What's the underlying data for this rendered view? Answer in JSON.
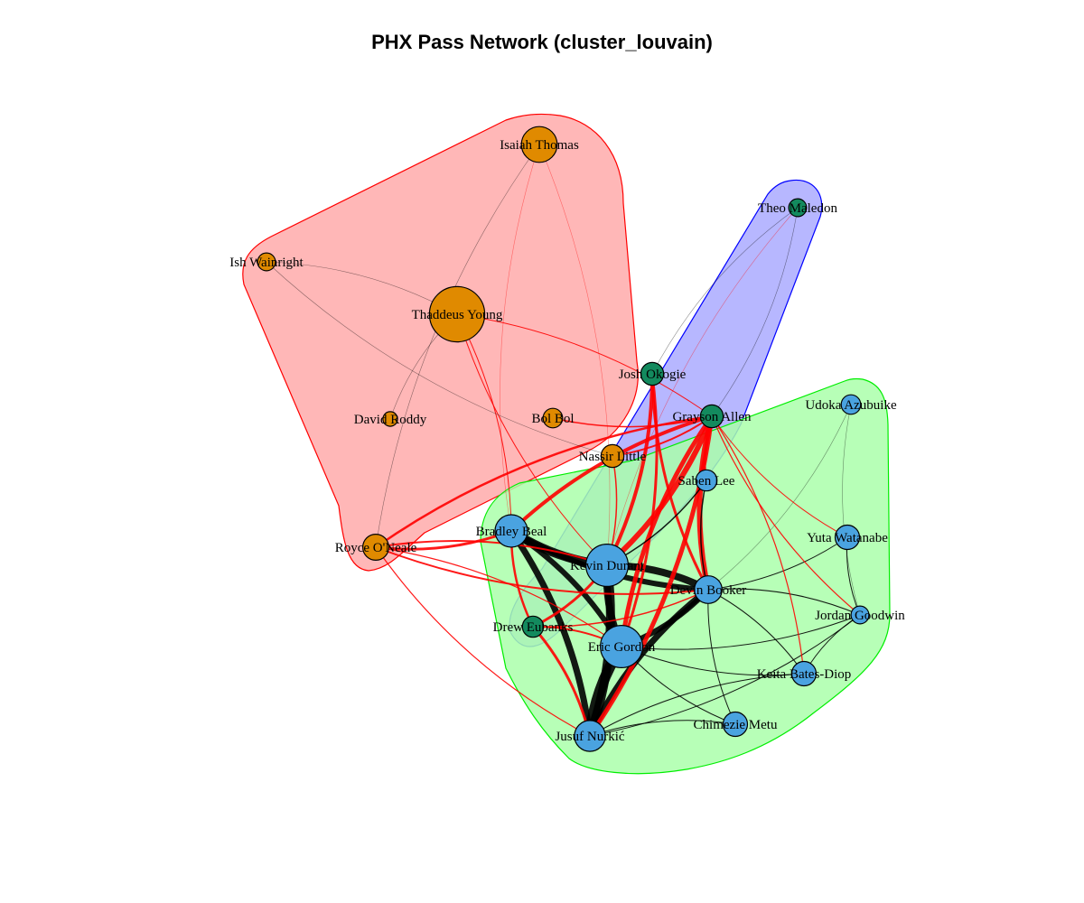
{
  "title": "PHX Pass Network (cluster_louvain)",
  "colors": {
    "cluster_red_fill": "#FFAAAA",
    "cluster_red_stroke": "#FF0000",
    "cluster_blue_fill": "#AAAAFF",
    "cluster_blue_stroke": "#0000FF",
    "cluster_green_fill": "#AAFFAA",
    "cluster_green_stroke": "#00EE00",
    "node_orange": "#E08A00",
    "node_green": "#138A5E",
    "node_blue": "#4AA3E0",
    "edge_between": "#FF0000",
    "edge_within": "#000000"
  },
  "clusters": [
    {
      "id": "red",
      "members": [
        "Isaiah Thomas",
        "Ish Wainright",
        "Thaddeus Young",
        "David Roddy",
        "Bol Bol",
        "Nassir Little",
        "Royce O'Neale"
      ]
    },
    {
      "id": "blue",
      "members": [
        "Theo Maledon",
        "Josh Okogie",
        "Grayson Allen",
        "Drew Eubanks"
      ]
    },
    {
      "id": "green",
      "members": [
        "Udoka Azubuike",
        "Saben Lee",
        "Bradley Beal",
        "Kevin Durant",
        "Devin Booker",
        "Yuta Watanabe",
        "Jordan Goodwin",
        "Eric Gordon",
        "Keita Bates-Diop",
        "Chimezie Metu",
        "Jusuf Nurkić"
      ]
    }
  ],
  "nodes": [
    {
      "id": "Isaiah Thomas",
      "label": "Isaiah Thomas",
      "cluster": "red",
      "size": 2.2
    },
    {
      "id": "Ish Wainright",
      "label": "Ish Wainright",
      "cluster": "red",
      "size": 1.1
    },
    {
      "id": "Thaddeus Young",
      "label": "Thaddeus Young",
      "cluster": "red",
      "size": 3.4
    },
    {
      "id": "David Roddy",
      "label": "David Roddy",
      "cluster": "red",
      "size": 0.9
    },
    {
      "id": "Bol Bol",
      "label": "Bol Bol",
      "cluster": "red",
      "size": 1.2
    },
    {
      "id": "Nassir Little",
      "label": "Nassir Little",
      "cluster": "red",
      "size": 1.4
    },
    {
      "id": "Royce O'Neale",
      "label": "Royce O'Neale",
      "cluster": "red",
      "size": 1.6
    },
    {
      "id": "Theo Maledon",
      "label": "Theo Maledon",
      "cluster": "blue",
      "size": 1.1
    },
    {
      "id": "Josh Okogie",
      "label": "Josh Okogie",
      "cluster": "blue",
      "size": 1.4
    },
    {
      "id": "Grayson Allen",
      "label": "Grayson Allen",
      "cluster": "blue",
      "size": 1.4
    },
    {
      "id": "Drew Eubanks",
      "label": "Drew Eubanks",
      "cluster": "blue",
      "size": 1.3
    },
    {
      "id": "Udoka Azubuike",
      "label": "Udoka Azubuike",
      "cluster": "green",
      "size": 1.2
    },
    {
      "id": "Saben Lee",
      "label": "Saben Lee",
      "cluster": "green",
      "size": 1.3
    },
    {
      "id": "Bradley Beal",
      "label": "Bradley Beal",
      "cluster": "green",
      "size": 2.0
    },
    {
      "id": "Kevin Durant",
      "label": "Kevin Durant",
      "cluster": "green",
      "size": 2.6
    },
    {
      "id": "Devin Booker",
      "label": "Devin Booker",
      "cluster": "green",
      "size": 1.7
    },
    {
      "id": "Yuta Watanabe",
      "label": "Yuta Watanabe",
      "cluster": "green",
      "size": 1.5
    },
    {
      "id": "Jordan Goodwin",
      "label": "Jordan Goodwin",
      "cluster": "green",
      "size": 1.1
    },
    {
      "id": "Eric Gordon",
      "label": "Eric Gordon",
      "cluster": "green",
      "size": 2.6
    },
    {
      "id": "Keita Bates-Diop",
      "label": "Keita Bates-Diop",
      "cluster": "green",
      "size": 1.5
    },
    {
      "id": "Chimezie Metu",
      "label": "Chimezie Metu",
      "cluster": "green",
      "size": 1.5
    },
    {
      "id": "Jusuf Nurkić",
      "label": "Jusuf Nurkić",
      "cluster": "green",
      "size": 1.9
    }
  ],
  "edges": [
    {
      "source": "Kevin Durant",
      "target": "Jusuf Nurkić",
      "weight": 10
    },
    {
      "source": "Eric Gordon",
      "target": "Jusuf Nurkić",
      "weight": 12
    },
    {
      "source": "Bradley Beal",
      "target": "Jusuf Nurkić",
      "weight": 7
    },
    {
      "source": "Bradley Beal",
      "target": "Kevin Durant",
      "weight": 10
    },
    {
      "source": "Bradley Beal",
      "target": "Eric Gordon",
      "weight": 6
    },
    {
      "source": "Bradley Beal",
      "target": "Devin Booker",
      "weight": 6
    },
    {
      "source": "Kevin Durant",
      "target": "Devin Booker",
      "weight": 8
    },
    {
      "source": "Kevin Durant",
      "target": "Eric Gordon",
      "weight": 8
    },
    {
      "source": "Devin Booker",
      "target": "Eric Gordon",
      "weight": 6
    },
    {
      "source": "Devin Booker",
      "target": "Jusuf Nurkić",
      "weight": 7
    },
    {
      "source": "Drew Eubanks",
      "target": "Jusuf Nurkić",
      "weight": 3
    },
    {
      "source": "Drew Eubanks",
      "target": "Kevin Durant",
      "weight": 3
    },
    {
      "source": "Drew Eubanks",
      "target": "Bradley Beal",
      "weight": 2.5
    },
    {
      "source": "Grayson Allen",
      "target": "Devin Booker",
      "weight": 6
    },
    {
      "source": "Grayson Allen",
      "target": "Kevin Durant",
      "weight": 6
    },
    {
      "source": "Grayson Allen",
      "target": "Eric Gordon",
      "weight": 5
    },
    {
      "source": "Grayson Allen",
      "target": "Jusuf Nurkić",
      "weight": 5
    },
    {
      "source": "Grayson Allen",
      "target": "Bradley Beal",
      "weight": 4
    },
    {
      "source": "Josh Okogie",
      "target": "Kevin Durant",
      "weight": 4
    },
    {
      "source": "Josh Okogie",
      "target": "Devin Booker",
      "weight": 3
    },
    {
      "source": "Josh Okogie",
      "target": "Eric Gordon",
      "weight": 3
    },
    {
      "source": "Royce O'Neale",
      "target": "Bradley Beal",
      "weight": 3
    },
    {
      "source": "Royce O'Neale",
      "target": "Kevin Durant",
      "weight": 2
    },
    {
      "source": "Royce O'Neale",
      "target": "Devin Booker",
      "weight": 2
    },
    {
      "source": "Royce O'Neale",
      "target": "Grayson Allen",
      "weight": 2.5
    },
    {
      "source": "Royce O'Neale",
      "target": "Jusuf Nurkić",
      "weight": 1.2
    },
    {
      "source": "Royce O'Neale",
      "target": "Eric Gordon",
      "weight": 1.2
    },
    {
      "source": "Nassir Little",
      "target": "Grayson Allen",
      "weight": 2
    },
    {
      "source": "Nassir Little",
      "target": "Kevin Durant",
      "weight": 1.5
    },
    {
      "source": "Bol Bol",
      "target": "Grayson Allen",
      "weight": 1.5
    },
    {
      "source": "Thaddeus Young",
      "target": "Grayson Allen",
      "weight": 1
    },
    {
      "source": "Thaddeus Young",
      "target": "Kevin Durant",
      "weight": 1
    },
    {
      "source": "Thaddeus Young",
      "target": "Bradley Beal",
      "weight": 1
    },
    {
      "source": "Isaiah Thomas",
      "target": "Bradley Beal",
      "weight": 0.6
    },
    {
      "source": "Isaiah Thomas",
      "target": "Kevin Durant",
      "weight": 0.6
    },
    {
      "source": "Isaiah Thomas",
      "target": "Royce O'Neale",
      "weight": 0.5
    },
    {
      "source": "Ish Wainright",
      "target": "Thaddeus Young",
      "weight": 0.5
    },
    {
      "source": "Ish Wainright",
      "target": "Nassir Little",
      "weight": 0.5
    },
    {
      "source": "David Roddy",
      "target": "Thaddeus Young",
      "weight": 0.5
    },
    {
      "source": "Theo Maledon",
      "target": "Josh Okogie",
      "weight": 0.6
    },
    {
      "source": "Theo Maledon",
      "target": "Grayson Allen",
      "weight": 0.6
    },
    {
      "source": "Theo Maledon",
      "target": "Kevin Durant",
      "weight": 0.5
    },
    {
      "source": "Saben Lee",
      "target": "Grayson Allen",
      "weight": 2
    },
    {
      "source": "Saben Lee",
      "target": "Devin Booker",
      "weight": 1.5
    },
    {
      "source": "Saben Lee",
      "target": "Kevin Durant",
      "weight": 1.5
    },
    {
      "source": "Udoka Azubuike",
      "target": "Jordan Goodwin",
      "weight": 0.6
    },
    {
      "source": "Udoka Azubuike",
      "target": "Devin Booker",
      "weight": 0.6
    },
    {
      "source": "Yuta Watanabe",
      "target": "Jordan Goodwin",
      "weight": 1
    },
    {
      "source": "Yuta Watanabe",
      "target": "Devin Booker",
      "weight": 1
    },
    {
      "source": "Jordan Goodwin",
      "target": "Devin Booker",
      "weight": 1.2
    },
    {
      "source": "Jordan Goodwin",
      "target": "Eric Gordon",
      "weight": 1
    },
    {
      "source": "Jordan Goodwin",
      "target": "Keita Bates-Diop",
      "weight": 1
    },
    {
      "source": "Jordan Goodwin",
      "target": "Jusuf Nurkić",
      "weight": 1
    },
    {
      "source": "Keita Bates-Diop",
      "target": "Devin Booker",
      "weight": 1
    },
    {
      "source": "Keita Bates-Diop",
      "target": "Eric Gordon",
      "weight": 1
    },
    {
      "source": "Keita Bates-Diop",
      "target": "Jusuf Nurkić",
      "weight": 1
    },
    {
      "source": "Chimezie Metu",
      "target": "Devin Booker",
      "weight": 1
    },
    {
      "source": "Chimezie Metu",
      "target": "Jusuf Nurkić",
      "weight": 1
    },
    {
      "source": "Chimezie Metu",
      "target": "Eric Gordon",
      "weight": 1
    },
    {
      "source": "Grayson Allen",
      "target": "Jordan Goodwin",
      "weight": 1.2
    },
    {
      "source": "Grayson Allen",
      "target": "Keita Bates-Diop",
      "weight": 1.2
    },
    {
      "source": "Grayson Allen",
      "target": "Yuta Watanabe",
      "weight": 1
    },
    {
      "source": "Drew Eubanks",
      "target": "Eric Gordon",
      "weight": 2
    },
    {
      "source": "Drew Eubanks",
      "target": "Devin Booker",
      "weight": 1.5
    }
  ]
}
